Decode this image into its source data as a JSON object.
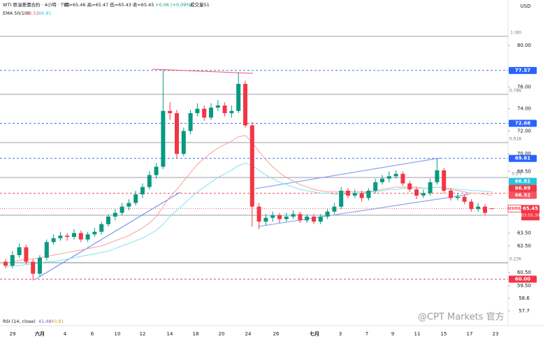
{
  "chart_data": {
    "type": "candlestick",
    "title": "WTI 原油差價合約 · 4小時 · TVC",
    "ohlc": "開=65.46 高=65.47 低=65.43 收=65.45",
    "change": "+0.06 (+0.09%)",
    "volume": "成交量51",
    "ema_label": "EMA 50/100",
    "ema_values": [
      66.52,
      66.81
    ],
    "rsi_label": "RSI (14, close)",
    "rsi_values": [
      41.48,
      40.81
    ],
    "currency": "USD",
    "watermark": "@CPT Markets 官方",
    "up_color": "#089981",
    "down_color": "#f23645",
    "log_scale": true,
    "grid": false,
    "ylim": [
      57.2,
      84.6
    ],
    "yticks": [
      {
        "value": 80,
        "label": "80.00"
      },
      {
        "value": 76,
        "label": "76.00"
      },
      {
        "value": 74,
        "label": "74.00"
      },
      {
        "value": 72,
        "label": "72.00"
      },
      {
        "value": 70,
        "label": "70.00"
      },
      {
        "value": 68.5,
        "label": "68.50"
      },
      {
        "value": 63.5,
        "label": "63.50"
      },
      {
        "value": 62.5,
        "label": "62.50"
      },
      {
        "value": 60.5,
        "label": "60.50"
      },
      {
        "value": 59.5,
        "label": "59.50"
      },
      58.6,
      57.7
    ],
    "xlabels": [
      "29",
      "六月",
      "4",
      "6",
      "10",
      "12",
      "14",
      "18",
      "20",
      "24",
      "26",
      "七月",
      "3",
      "7",
      "9",
      "11",
      "15",
      "17",
      "23"
    ],
    "fib_labels": [
      "1 (80",
      "0.786",
      "0.618",
      "0.5 (",
      "0.236"
    ],
    "candles": [
      [
        61.3,
        61.5,
        60.8,
        61.0
      ],
      [
        61.0,
        62.1,
        60.8,
        61.8
      ],
      [
        61.8,
        62.7,
        61.6,
        62.4
      ],
      [
        62.4,
        62.6,
        61.1,
        61.3
      ],
      [
        61.3,
        61.5,
        59.9,
        60.4
      ],
      [
        60.4,
        61.8,
        60.2,
        61.6
      ],
      [
        61.6,
        63.0,
        61.4,
        62.8
      ],
      [
        62.8,
        63.4,
        62.6,
        63.1
      ],
      [
        63.1,
        63.6,
        62.9,
        63.3
      ],
      [
        63.3,
        63.5,
        62.9,
        63.2
      ],
      [
        63.2,
        63.8,
        63.0,
        63.5
      ],
      [
        63.5,
        63.7,
        62.8,
        63.0
      ],
      [
        63.0,
        63.6,
        62.8,
        63.4
      ],
      [
        63.4,
        63.9,
        63.2,
        63.6
      ],
      [
        63.6,
        64.4,
        63.4,
        64.2
      ],
      [
        64.2,
        65.0,
        64.0,
        64.8
      ],
      [
        64.8,
        65.4,
        64.5,
        65.1
      ],
      [
        65.1,
        65.9,
        64.9,
        65.6
      ],
      [
        65.6,
        66.2,
        65.3,
        65.9
      ],
      [
        65.9,
        66.9,
        65.7,
        66.6
      ],
      [
        66.6,
        67.5,
        66.3,
        67.2
      ],
      [
        67.2,
        68.5,
        67.0,
        68.2
      ],
      [
        68.2,
        69.2,
        67.9,
        68.9
      ],
      [
        68.9,
        77.57,
        68.7,
        73.8
      ],
      [
        73.8,
        74.6,
        73.0,
        73.6
      ],
      [
        73.6,
        73.9,
        69.6,
        70.0
      ],
      [
        70.0,
        72.3,
        69.8,
        72.0
      ],
      [
        72.0,
        73.9,
        71.7,
        73.6
      ],
      [
        73.6,
        74.5,
        73.3,
        74.0
      ],
      [
        74.0,
        74.3,
        72.9,
        73.2
      ],
      [
        73.2,
        74.5,
        73.0,
        74.1
      ],
      [
        74.1,
        74.8,
        73.8,
        74.3
      ],
      [
        74.3,
        74.6,
        73.3,
        73.6
      ],
      [
        73.6,
        74.3,
        73.2,
        73.8
      ],
      [
        73.8,
        77.4,
        73.6,
        76.3
      ],
      [
        76.3,
        76.6,
        72.3,
        72.5
      ],
      [
        72.5,
        72.8,
        64.0,
        65.6
      ],
      [
        65.6,
        65.9,
        63.8,
        64.4
      ],
      [
        64.4,
        65.0,
        64.1,
        64.7
      ],
      [
        64.7,
        65.2,
        64.4,
        64.9
      ],
      [
        64.9,
        65.1,
        64.3,
        64.6
      ],
      [
        64.6,
        65.1,
        64.4,
        64.8
      ],
      [
        64.8,
        65.3,
        64.6,
        65.0
      ],
      [
        65.0,
        65.2,
        64.3,
        64.5
      ],
      [
        64.5,
        65.0,
        64.3,
        64.8
      ],
      [
        64.8,
        65.0,
        64.2,
        64.4
      ],
      [
        64.4,
        65.0,
        64.2,
        64.8
      ],
      [
        64.8,
        65.4,
        64.6,
        65.2
      ],
      [
        65.2,
        65.9,
        65.0,
        65.6
      ],
      [
        65.6,
        67.2,
        65.4,
        66.9
      ],
      [
        66.9,
        67.1,
        66.3,
        66.5
      ],
      [
        66.5,
        67.0,
        66.3,
        66.7
      ],
      [
        66.7,
        66.9,
        66.0,
        66.3
      ],
      [
        66.3,
        67.1,
        66.1,
        66.9
      ],
      [
        66.9,
        67.9,
        66.7,
        67.6
      ],
      [
        67.6,
        68.2,
        67.4,
        67.9
      ],
      [
        67.9,
        68.5,
        67.6,
        68.1
      ],
      [
        68.1,
        68.6,
        67.9,
        68.3
      ],
      [
        68.3,
        68.5,
        67.3,
        67.5
      ],
      [
        67.5,
        67.7,
        66.8,
        67.0
      ],
      [
        67.0,
        67.2,
        66.2,
        66.5
      ],
      [
        66.5,
        67.0,
        66.3,
        66.7
      ],
      [
        66.7,
        67.9,
        66.5,
        67.6
      ],
      [
        67.6,
        69.61,
        67.4,
        68.6
      ],
      [
        68.6,
        68.8,
        66.7,
        66.9
      ],
      [
        66.9,
        67.1,
        66.1,
        66.3
      ],
      [
        66.3,
        66.7,
        66.1,
        66.4
      ],
      [
        66.4,
        66.6,
        65.8,
        66.0
      ],
      [
        66.0,
        66.2,
        65.2,
        65.4
      ],
      [
        65.4,
        65.9,
        65.2,
        65.6
      ],
      [
        65.6,
        65.8,
        64.9,
        65.1
      ],
      [
        65.46,
        65.47,
        65.43,
        65.45
      ]
    ],
    "series": [
      {
        "color": "#f7a399",
        "values": [
          61.2,
          61.3,
          61.4,
          61.5,
          61.5,
          61.6,
          61.7,
          61.8,
          61.9,
          62.0,
          62.1,
          62.2,
          62.3,
          62.4,
          62.5,
          62.7,
          62.9,
          63.1,
          63.3,
          63.6,
          63.9,
          64.3,
          64.8,
          65.6,
          66.4,
          67.0,
          67.7,
          68.4,
          69.1,
          69.6,
          70.1,
          70.5,
          70.8,
          71.1,
          71.5,
          71.6,
          71.0,
          70.2,
          69.5,
          68.9,
          68.4,
          68.0,
          67.7,
          67.4,
          67.2,
          67.0,
          66.9,
          66.8,
          66.8,
          66.8,
          66.8,
          66.8,
          66.8,
          66.8,
          66.9,
          67.0,
          67.1,
          67.2,
          67.2,
          67.2,
          67.2,
          67.1,
          67.1,
          67.2,
          67.1,
          67.0,
          66.9,
          66.8,
          66.7,
          66.7,
          66.6,
          66.52
        ]
      },
      {
        "color": "#7fe3ef",
        "values": [
          60.9,
          61.0,
          61.0,
          61.1,
          61.1,
          61.2,
          61.3,
          61.3,
          61.4,
          61.5,
          61.6,
          61.7,
          61.8,
          61.9,
          62.0,
          62.1,
          62.3,
          62.5,
          62.7,
          62.9,
          63.1,
          63.4,
          63.7,
          64.2,
          64.8,
          65.3,
          65.8,
          66.3,
          66.8,
          67.2,
          67.6,
          68.0,
          68.3,
          68.6,
          69.0,
          69.2,
          69.0,
          68.6,
          68.2,
          67.9,
          67.6,
          67.4,
          67.2,
          67.0,
          66.9,
          66.8,
          66.7,
          66.7,
          66.6,
          66.6,
          66.6,
          66.7,
          66.7,
          66.8,
          66.8,
          66.9,
          67.0,
          67.0,
          67.1,
          67.1,
          67.1,
          67.1,
          67.1,
          67.2,
          67.1,
          67.1,
          67.0,
          67.0,
          66.9,
          66.9,
          66.85,
          66.81
        ]
      }
    ],
    "price_levels": [
      {
        "value": 77.57,
        "color": "#2962ff",
        "line": "dotted"
      },
      {
        "value": 72.68,
        "color": "#2962ff",
        "line": "dotted"
      },
      {
        "value": 69.61,
        "color": "#2962ff",
        "line": "dotted"
      },
      {
        "value": 66.81,
        "color": "#26c6da",
        "line": "none"
      },
      {
        "value": 66.69,
        "color": "#f23645",
        "line": "dotted"
      },
      {
        "value": 66.52,
        "color": "#f7525f",
        "line": "none"
      },
      {
        "value": 60,
        "label": "60.00",
        "color": "#f23645",
        "line": "dotted"
      }
    ],
    "last": {
      "symbol": "USOIL",
      "value": 65.45,
      "countdown": "03:55:30",
      "color": "#f23645"
    }
  }
}
